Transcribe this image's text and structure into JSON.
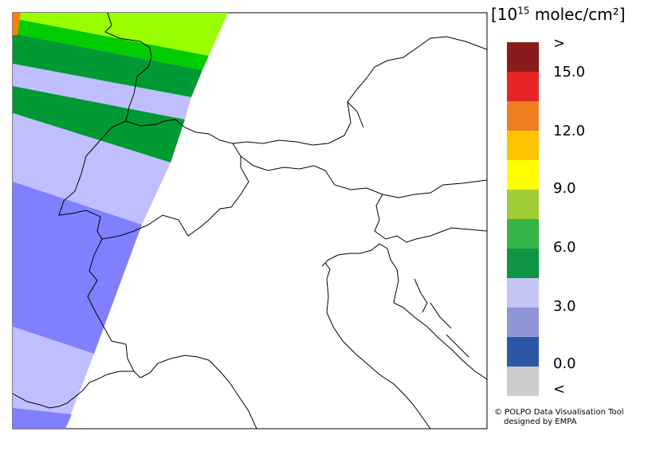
{
  "legend": {
    "title_open": "[10",
    "title_exp": "15",
    "title_rest": " molec/cm²]",
    "colors": [
      "#8b1a1a",
      "#e62626",
      "#f07f22",
      "#ffc400",
      "#ffff00",
      "#a0cc34",
      "#36b44a",
      "#0f9444",
      "#c5c5f5",
      "#8f96d6",
      "#2d58a8",
      "#cccccc"
    ],
    "ticks": [
      ">",
      "15.0",
      "12.0",
      "9.0",
      "6.0",
      "3.0",
      "0.0",
      "<"
    ]
  },
  "credit": {
    "line1": "© POLPO Data Visualisation Tool",
    "line2": "designed by EMPA"
  },
  "map": {
    "swath_colors": {
      "yellowgreen": "#99ff00",
      "green": "#00cc00",
      "darkgreen": "#009933",
      "lightblue": "#bfbfff",
      "blue": "#8080ff",
      "orange": "#ff8000"
    }
  }
}
